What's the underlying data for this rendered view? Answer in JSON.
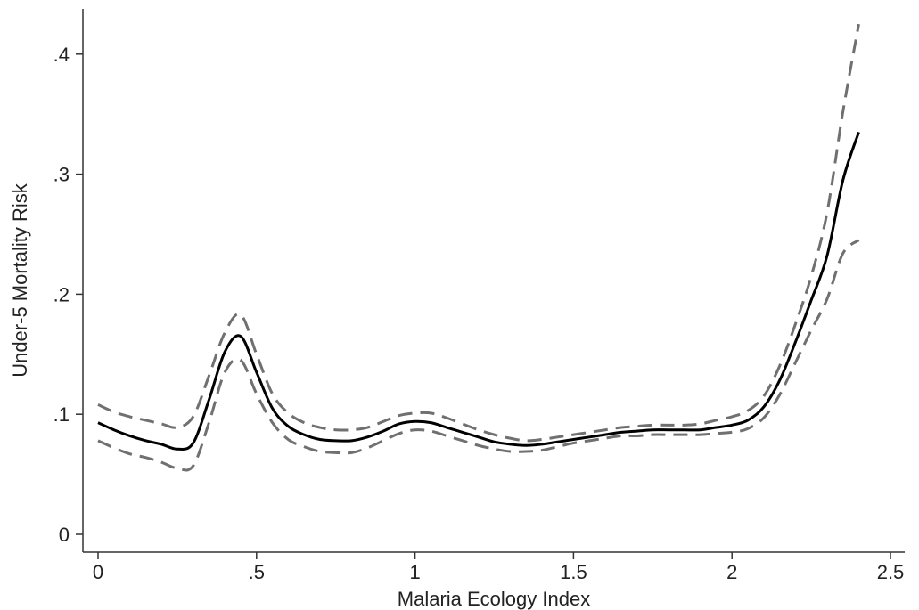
{
  "chart_data": {
    "type": "line",
    "title": "",
    "xlabel": "Malaria Ecology Index",
    "ylabel": "Under-5 Mortality Risk",
    "xlim": [
      -0.05,
      2.55
    ],
    "ylim": [
      -0.01,
      0.435
    ],
    "x_ticks": [
      0,
      0.5,
      1,
      1.5,
      2,
      2.5
    ],
    "x_tick_labels": [
      "0",
      ".5",
      "1",
      "1.5",
      "2",
      "2.5"
    ],
    "y_ticks": [
      0,
      0.1,
      0.2,
      0.3,
      0.4
    ],
    "y_tick_labels": [
      "0",
      ".1",
      ".2",
      ".3",
      ".4"
    ],
    "grid": false,
    "legend": "none",
    "series": [
      {
        "style": "solid",
        "color": "#000000",
        "x": [
          0,
          0.05,
          0.1,
          0.15,
          0.2,
          0.25,
          0.3,
          0.35,
          0.4,
          0.45,
          0.5,
          0.55,
          0.6,
          0.65,
          0.7,
          0.75,
          0.8,
          0.85,
          0.9,
          0.95,
          1.0,
          1.05,
          1.1,
          1.15,
          1.2,
          1.25,
          1.3,
          1.35,
          1.4,
          1.45,
          1.5,
          1.55,
          1.6,
          1.65,
          1.7,
          1.75,
          1.8,
          1.85,
          1.9,
          1.95,
          2.0,
          2.05,
          2.1,
          2.15,
          2.2,
          2.25,
          2.3,
          2.35,
          2.4
        ],
        "y": [
          0.093,
          0.087,
          0.082,
          0.078,
          0.075,
          0.071,
          0.076,
          0.112,
          0.152,
          0.165,
          0.135,
          0.105,
          0.09,
          0.083,
          0.079,
          0.078,
          0.078,
          0.081,
          0.086,
          0.092,
          0.094,
          0.093,
          0.089,
          0.085,
          0.081,
          0.077,
          0.075,
          0.074,
          0.075,
          0.077,
          0.079,
          0.081,
          0.083,
          0.085,
          0.086,
          0.087,
          0.087,
          0.087,
          0.087,
          0.089,
          0.091,
          0.095,
          0.106,
          0.128,
          0.16,
          0.195,
          0.232,
          0.295,
          0.335
        ]
      },
      {
        "style": "dashed",
        "color": "#707070",
        "x": [
          0,
          0.05,
          0.1,
          0.15,
          0.2,
          0.25,
          0.3,
          0.35,
          0.4,
          0.45,
          0.5,
          0.55,
          0.6,
          0.65,
          0.7,
          0.75,
          0.8,
          0.85,
          0.9,
          0.95,
          1.0,
          1.05,
          1.1,
          1.15,
          1.2,
          1.25,
          1.3,
          1.35,
          1.4,
          1.45,
          1.5,
          1.55,
          1.6,
          1.65,
          1.7,
          1.75,
          1.8,
          1.85,
          1.9,
          1.95,
          2.0,
          2.05,
          2.1,
          2.15,
          2.2,
          2.25,
          2.3,
          2.35,
          2.4
        ],
        "y": [
          0.108,
          0.102,
          0.098,
          0.095,
          0.092,
          0.089,
          0.098,
          0.132,
          0.168,
          0.183,
          0.15,
          0.117,
          0.101,
          0.093,
          0.089,
          0.087,
          0.087,
          0.089,
          0.094,
          0.099,
          0.101,
          0.101,
          0.097,
          0.092,
          0.087,
          0.083,
          0.08,
          0.078,
          0.079,
          0.081,
          0.083,
          0.085,
          0.087,
          0.089,
          0.09,
          0.091,
          0.091,
          0.091,
          0.092,
          0.095,
          0.098,
          0.103,
          0.115,
          0.14,
          0.175,
          0.215,
          0.268,
          0.352,
          0.425
        ]
      },
      {
        "style": "dashed",
        "color": "#707070",
        "x": [
          0,
          0.05,
          0.1,
          0.15,
          0.2,
          0.25,
          0.3,
          0.35,
          0.4,
          0.45,
          0.5,
          0.55,
          0.6,
          0.65,
          0.7,
          0.75,
          0.8,
          0.85,
          0.9,
          0.95,
          1.0,
          1.05,
          1.1,
          1.15,
          1.2,
          1.25,
          1.3,
          1.35,
          1.4,
          1.45,
          1.5,
          1.55,
          1.6,
          1.65,
          1.7,
          1.75,
          1.8,
          1.85,
          1.9,
          1.95,
          2.0,
          2.05,
          2.1,
          2.15,
          2.2,
          2.25,
          2.3,
          2.35,
          2.4
        ],
        "y": [
          0.078,
          0.072,
          0.067,
          0.064,
          0.06,
          0.055,
          0.057,
          0.093,
          0.135,
          0.145,
          0.117,
          0.093,
          0.079,
          0.073,
          0.069,
          0.068,
          0.068,
          0.072,
          0.078,
          0.084,
          0.087,
          0.086,
          0.082,
          0.078,
          0.074,
          0.071,
          0.069,
          0.069,
          0.07,
          0.073,
          0.076,
          0.078,
          0.08,
          0.082,
          0.082,
          0.083,
          0.083,
          0.083,
          0.083,
          0.084,
          0.085,
          0.088,
          0.097,
          0.116,
          0.143,
          0.17,
          0.196,
          0.234,
          0.245
        ]
      }
    ]
  }
}
